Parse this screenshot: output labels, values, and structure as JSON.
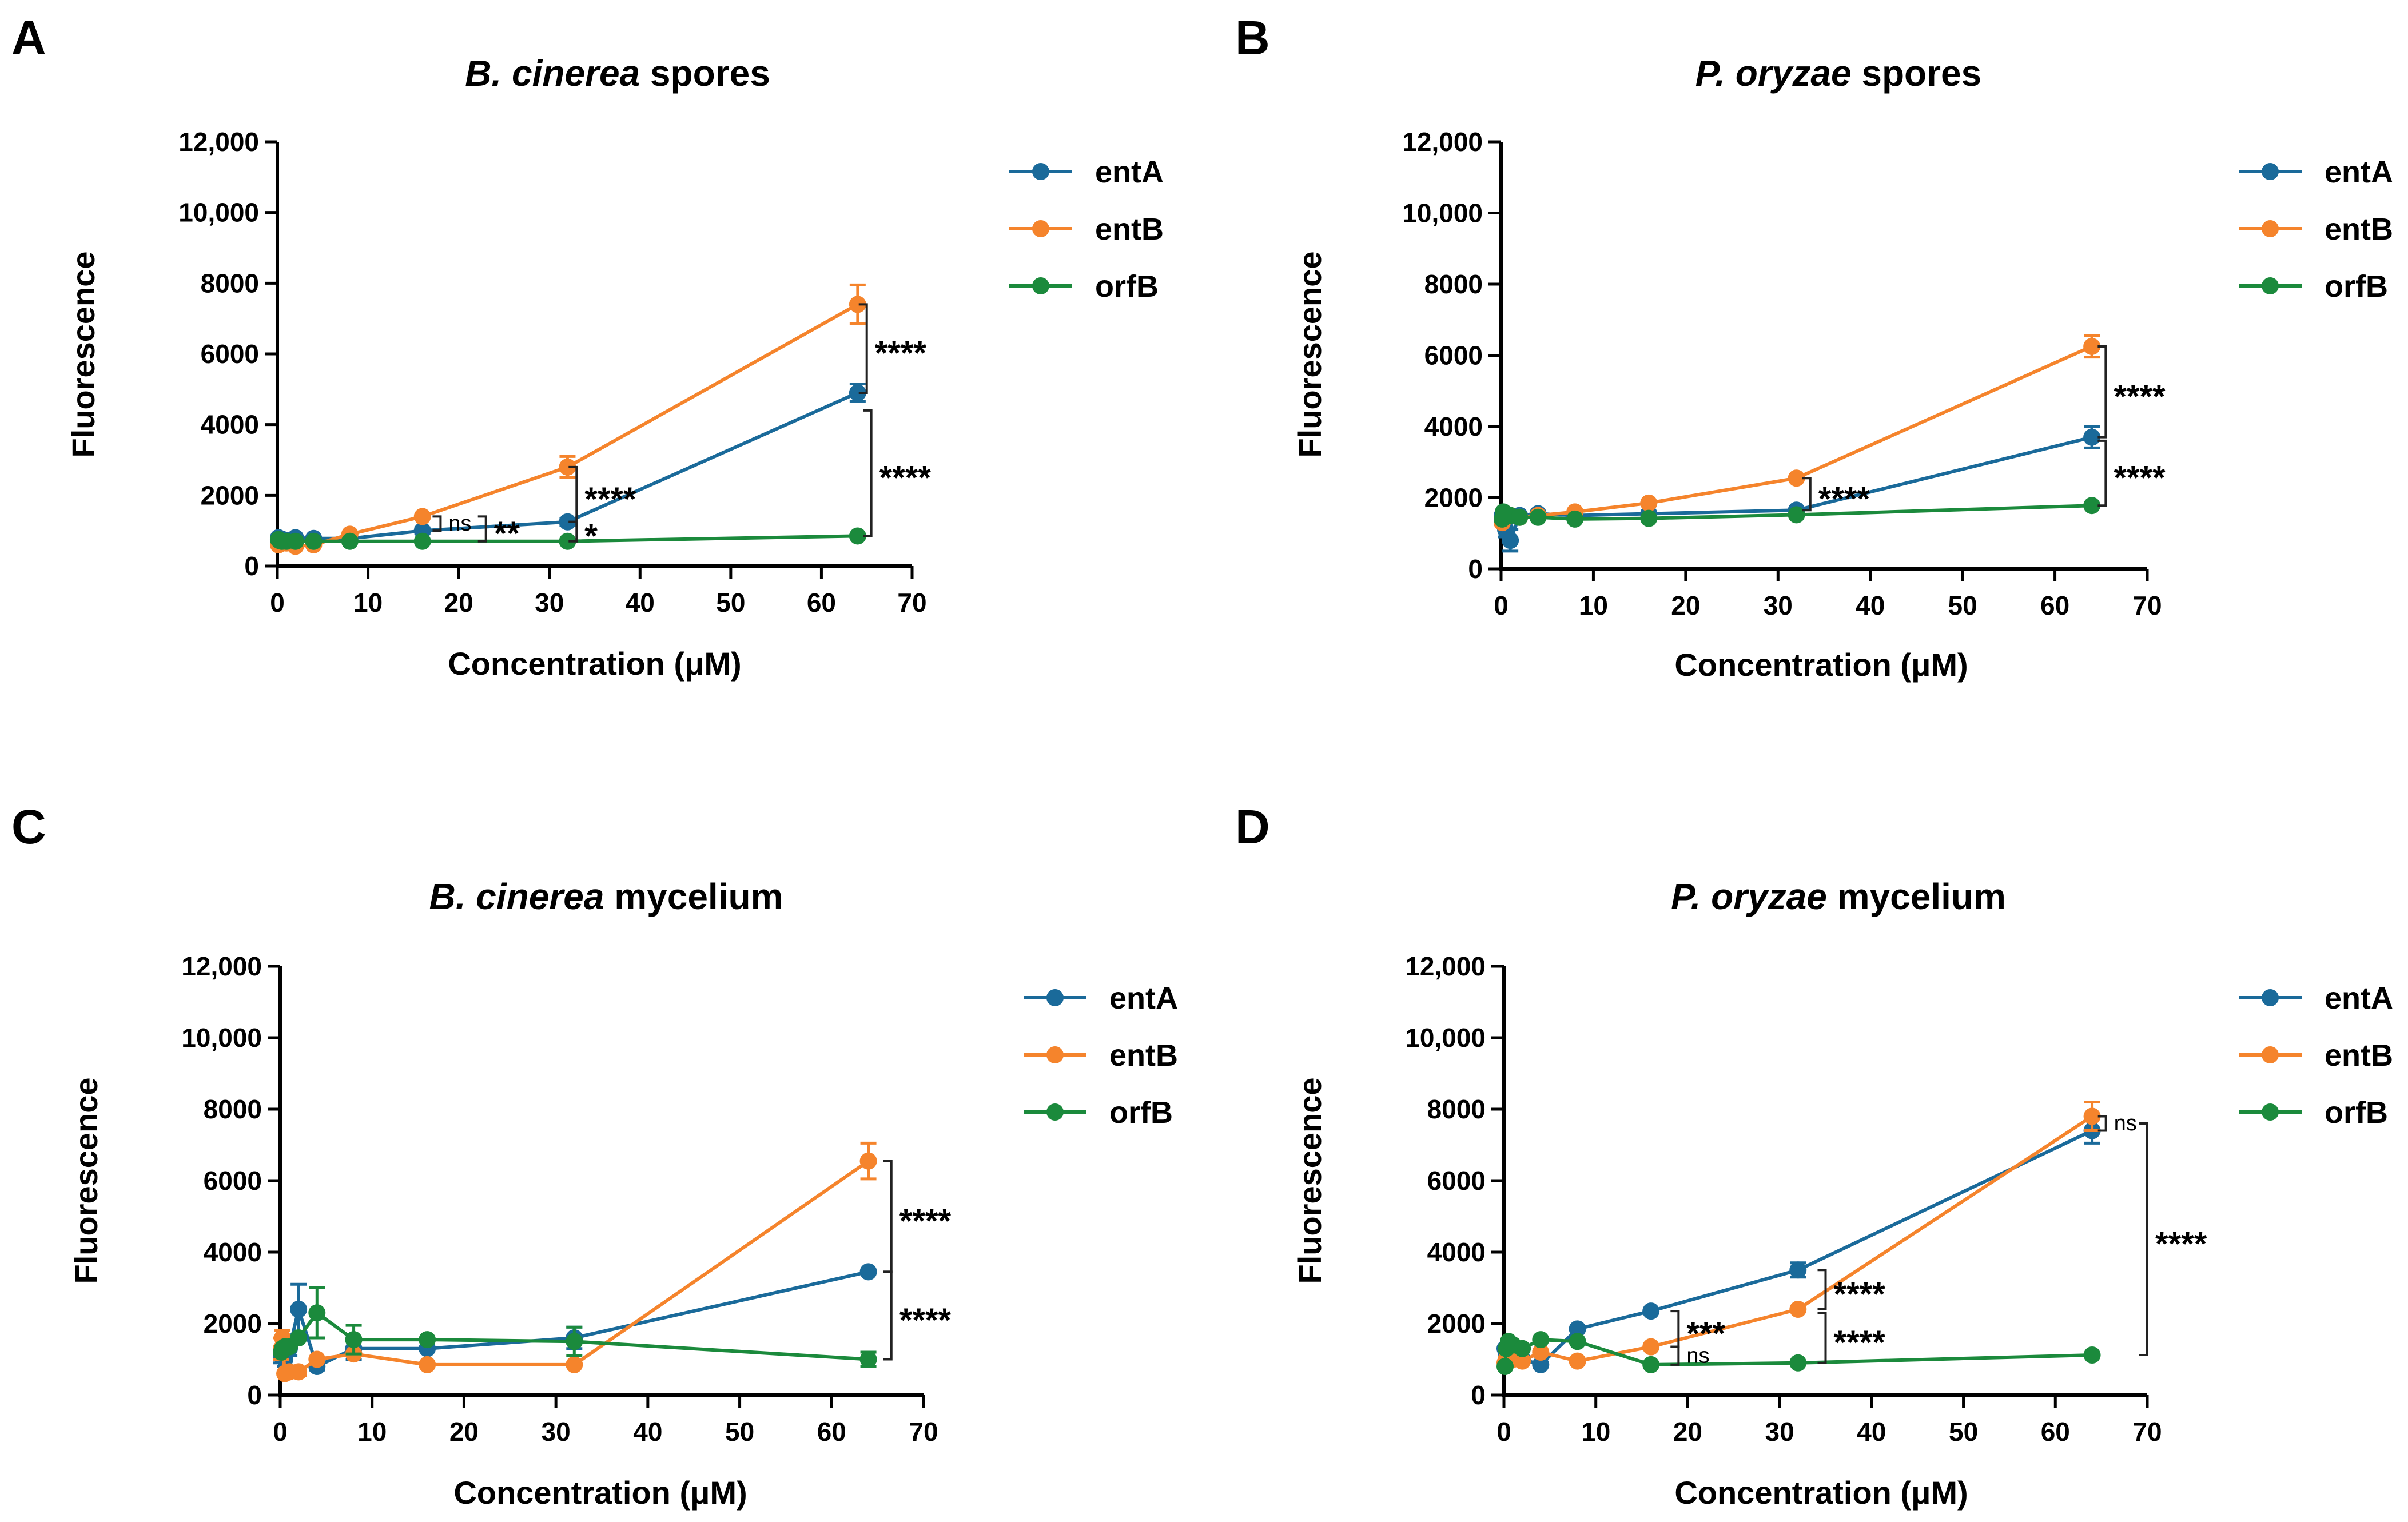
{
  "colors": {
    "entA": "#1a6a9a",
    "entB": "#f5842c",
    "orfB": "#1b8a3c"
  },
  "series_names": [
    "entA",
    "entB",
    "orfB"
  ],
  "chart_data": [
    {
      "type": "line",
      "panel_letter": "A",
      "title_italic": "B. cinerea",
      "title_rest": "spores",
      "xlabel": "Concentration (μM)",
      "ylabel": "Fluorescence",
      "xlim": [
        0,
        70
      ],
      "ylim": [
        0,
        12000
      ],
      "xticks": [
        0,
        10,
        20,
        30,
        40,
        50,
        60,
        70
      ],
      "yticks": [
        0,
        2000,
        4000,
        6000,
        8000,
        10000,
        12000
      ],
      "ytick_labels": [
        "0",
        "2000",
        "4000",
        "6000",
        "8000",
        "10,000",
        "12,000"
      ],
      "legend_position": "top-right",
      "series": [
        {
          "name": "entA",
          "x": [
            0.125,
            0.25,
            0.5,
            1,
            2,
            4,
            8,
            16,
            32,
            64
          ],
          "y": [
            800,
            780,
            760,
            720,
            800,
            780,
            780,
            1000,
            1250,
            4900
          ],
          "err": [
            0,
            0,
            0,
            0,
            0,
            0,
            0,
            80,
            100,
            250
          ]
        },
        {
          "name": "entB",
          "x": [
            0.125,
            0.25,
            0.5,
            1,
            2,
            4,
            8,
            16,
            32,
            64
          ],
          "y": [
            600,
            620,
            700,
            650,
            560,
            600,
            900,
            1400,
            2800,
            7400
          ],
          "err": [
            0,
            0,
            0,
            0,
            0,
            0,
            0,
            0,
            300,
            550
          ]
        },
        {
          "name": "orfB",
          "x": [
            0.125,
            0.25,
            0.5,
            1,
            2,
            4,
            8,
            16,
            32,
            64
          ],
          "y": [
            750,
            720,
            700,
            700,
            700,
            700,
            700,
            700,
            700,
            850
          ],
          "err": [
            0,
            0,
            0,
            0,
            0,
            0,
            0,
            0,
            0,
            0
          ]
        }
      ],
      "annotations": [
        {
          "text": "****",
          "x": 65,
          "y_from": 7400,
          "y_to": 4900
        },
        {
          "text": "****",
          "x": 65.5,
          "y_from": 4400,
          "y_to": 850
        },
        {
          "text": "****",
          "x": 33,
          "y_from": 2800,
          "y_to": 1250
        },
        {
          "text": "ns",
          "x": 18,
          "y_from": 1400,
          "y_to": 1000
        },
        {
          "text": "**",
          "x": 23,
          "y_from": 1400,
          "y_to": 700
        },
        {
          "text": "*",
          "x": 33,
          "y_from": 1250,
          "y_to": 700
        }
      ]
    },
    {
      "type": "line",
      "panel_letter": "B",
      "title_italic": "P. oryzae",
      "title_rest": "spores",
      "xlabel": "Concentration (μM)",
      "ylabel": "Fluorescence",
      "xlim": [
        0,
        70
      ],
      "ylim": [
        0,
        12000
      ],
      "xticks": [
        0,
        10,
        20,
        30,
        40,
        50,
        60,
        70
      ],
      "yticks": [
        0,
        2000,
        4000,
        6000,
        8000,
        10000,
        12000
      ],
      "ytick_labels": [
        "0",
        "2000",
        "4000",
        "6000",
        "8000",
        "10,000",
        "12,000"
      ],
      "legend_position": "top-right",
      "series": [
        {
          "name": "entA",
          "x": [
            0.125,
            0.25,
            0.5,
            1,
            2,
            4,
            8,
            16,
            32,
            64
          ],
          "y": [
            1500,
            1400,
            1100,
            800,
            1500,
            1550,
            1500,
            1550,
            1650,
            3700
          ],
          "err": [
            0,
            0,
            200,
            300,
            0,
            0,
            0,
            0,
            0,
            300
          ]
        },
        {
          "name": "entB",
          "x": [
            0.125,
            0.25,
            0.5,
            1,
            2,
            4,
            8,
            16,
            32,
            64
          ],
          "y": [
            1300,
            1400,
            1450,
            1500,
            1450,
            1500,
            1600,
            1850,
            2550,
            6250
          ],
          "err": [
            0,
            0,
            0,
            0,
            0,
            0,
            0,
            0,
            0,
            300
          ]
        },
        {
          "name": "orfB",
          "x": [
            0.125,
            0.25,
            0.5,
            1,
            2,
            4,
            8,
            16,
            32,
            64
          ],
          "y": [
            1400,
            1600,
            1550,
            1500,
            1450,
            1450,
            1400,
            1420,
            1520,
            1780
          ],
          "err": [
            0,
            0,
            0,
            0,
            0,
            0,
            0,
            0,
            0,
            0
          ]
        }
      ],
      "annotations": [
        {
          "text": "****",
          "x": 65.5,
          "y_from": 6250,
          "y_to": 3700
        },
        {
          "text": "****",
          "x": 65.5,
          "y_from": 3600,
          "y_to": 1780
        },
        {
          "text": "****",
          "x": 33.5,
          "y_from": 2550,
          "y_to": 1650
        }
      ]
    },
    {
      "type": "line",
      "panel_letter": "C",
      "title_italic": "B. cinerea",
      "title_rest": "mycelium",
      "xlabel": "Concentration (μM)",
      "ylabel": "Fluorescence",
      "xlim": [
        0,
        70
      ],
      "ylim": [
        0,
        12000
      ],
      "xticks": [
        0,
        10,
        20,
        30,
        40,
        50,
        60,
        70
      ],
      "yticks": [
        0,
        2000,
        4000,
        6000,
        8000,
        10000,
        12000
      ],
      "ytick_labels": [
        "0",
        "2000",
        "4000",
        "6000",
        "8000",
        "10,000",
        "12,000"
      ],
      "legend_position": "top-right",
      "series": [
        {
          "name": "entA",
          "x": [
            0.125,
            0.25,
            0.5,
            1,
            2,
            4,
            8,
            16,
            32,
            64
          ],
          "y": [
            1100,
            1200,
            1000,
            1300,
            2400,
            800,
            1300,
            1300,
            1600,
            3450
          ],
          "err": [
            200,
            200,
            200,
            200,
            700,
            100,
            300,
            0,
            300,
            0
          ]
        },
        {
          "name": "entB",
          "x": [
            0.125,
            0.25,
            0.5,
            1,
            2,
            4,
            8,
            16,
            32,
            64
          ],
          "y": [
            1300,
            1600,
            600,
            650,
            650,
            1000,
            1150,
            850,
            850,
            6550
          ],
          "err": [
            300,
            200,
            0,
            0,
            100,
            0,
            0,
            0,
            0,
            500
          ]
        },
        {
          "name": "orfB",
          "x": [
            0.125,
            0.25,
            0.5,
            1,
            2,
            4,
            8,
            16,
            32,
            64
          ],
          "y": [
            1200,
            1300,
            1350,
            1350,
            1600,
            2300,
            1550,
            1550,
            1500,
            1000
          ],
          "err": [
            0,
            0,
            0,
            0,
            0,
            700,
            400,
            0,
            400,
            200
          ]
        }
      ],
      "annotations": [
        {
          "text": "****",
          "x": 66.5,
          "y_from": 6550,
          "y_to": 3450
        },
        {
          "text": "****",
          "x": 66.5,
          "y_from": 3450,
          "y_to": 1000
        }
      ]
    },
    {
      "type": "line",
      "panel_letter": "D",
      "title_italic": "P. oryzae",
      "title_rest": "mycelium",
      "xlabel": "Concentration (μM)",
      "ylabel": "Fluorescence",
      "xlim": [
        0,
        70
      ],
      "ylim": [
        0,
        12000
      ],
      "xticks": [
        0,
        10,
        20,
        30,
        40,
        50,
        60,
        70
      ],
      "yticks": [
        0,
        2000,
        4000,
        6000,
        8000,
        10000,
        12000
      ],
      "ytick_labels": [
        "0",
        "2000",
        "4000",
        "6000",
        "8000",
        "10,000",
        "12,000"
      ],
      "legend_position": "top-right",
      "series": [
        {
          "name": "entA",
          "x": [
            0.125,
            0.25,
            0.5,
            1,
            2,
            4,
            8,
            16,
            32,
            64
          ],
          "y": [
            1300,
            1200,
            1100,
            1050,
            1000,
            850,
            1850,
            2350,
            3500,
            7400
          ],
          "err": [
            0,
            0,
            0,
            0,
            0,
            0,
            0,
            0,
            200,
            350
          ]
        },
        {
          "name": "entB",
          "x": [
            0.125,
            0.25,
            0.5,
            1,
            2,
            4,
            8,
            16,
            32,
            64
          ],
          "y": [
            900,
            1000,
            1100,
            1000,
            950,
            1200,
            950,
            1350,
            2400,
            7800
          ],
          "err": [
            0,
            0,
            0,
            0,
            0,
            0,
            0,
            0,
            0,
            400
          ]
        },
        {
          "name": "orfB",
          "x": [
            0.125,
            0.25,
            0.5,
            1,
            2,
            4,
            8,
            16,
            32,
            64
          ],
          "y": [
            800,
            1300,
            1500,
            1400,
            1300,
            1550,
            1500,
            850,
            900,
            1120
          ],
          "err": [
            0,
            0,
            0,
            0,
            0,
            0,
            0,
            0,
            0,
            0
          ]
        }
      ],
      "annotations": [
        {
          "text": "ns",
          "x": 65.5,
          "y_from": 7800,
          "y_to": 7400
        },
        {
          "text": "****",
          "x": 70,
          "y_from": 7600,
          "y_to": 1120
        },
        {
          "text": "****",
          "x": 35,
          "y_from": 3500,
          "y_to": 2400
        },
        {
          "text": "****",
          "x": 35,
          "y_from": 2300,
          "y_to": 900
        },
        {
          "text": "***",
          "x": 19,
          "y_from": 2350,
          "y_to": 1350
        },
        {
          "text": "ns",
          "x": 19,
          "y_from": 1350,
          "y_to": 850
        }
      ]
    }
  ]
}
